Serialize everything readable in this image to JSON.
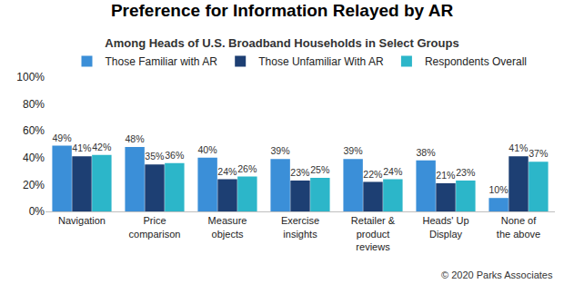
{
  "chart_data": {
    "type": "bar",
    "title": "Preference for Information Relayed by AR",
    "subtitle": "Among Heads of U.S. Broadband Households in Select Groups",
    "categories": [
      "Navigation",
      "Price comparison",
      "Measure objects",
      "Exercise insights",
      "Retailer & product reviews",
      "Heads' Up Display",
      "None of the above"
    ],
    "series": [
      {
        "name": "Those Familiar with AR",
        "color": "#3b8fd8",
        "values": [
          49,
          48,
          40,
          39,
          39,
          38,
          10
        ],
        "value_labels": [
          "49%",
          "48%",
          "40%",
          "39%",
          "39%",
          "38%",
          "10%"
        ]
      },
      {
        "name": "Those Unfamiliar With AR",
        "color": "#1d3f73",
        "values": [
          41,
          35,
          24,
          23,
          22,
          21,
          41
        ],
        "value_labels": [
          "41%",
          "35%",
          "24%",
          "23%",
          "22%",
          "21%",
          "41%"
        ]
      },
      {
        "name": "Respondents Overall",
        "color": "#2cb6c9",
        "values": [
          42,
          36,
          26,
          25,
          24,
          23,
          37
        ],
        "value_labels": [
          "42%",
          "36%",
          "26%",
          "25%",
          "24%",
          "23%",
          "37%"
        ]
      }
    ],
    "ylim": [
      0,
      100
    ],
    "yticks": [
      {
        "value": 0,
        "label": "0%"
      },
      {
        "value": 20,
        "label": "20%"
      },
      {
        "value": 40,
        "label": "40%"
      },
      {
        "value": 60,
        "label": "60%"
      },
      {
        "value": 80,
        "label": "80%"
      },
      {
        "value": 100,
        "label": "100%"
      }
    ],
    "grid": false,
    "legend": "top",
    "data_labels": true,
    "annotations": [
      "© 2020 Parks Associates"
    ]
  }
}
